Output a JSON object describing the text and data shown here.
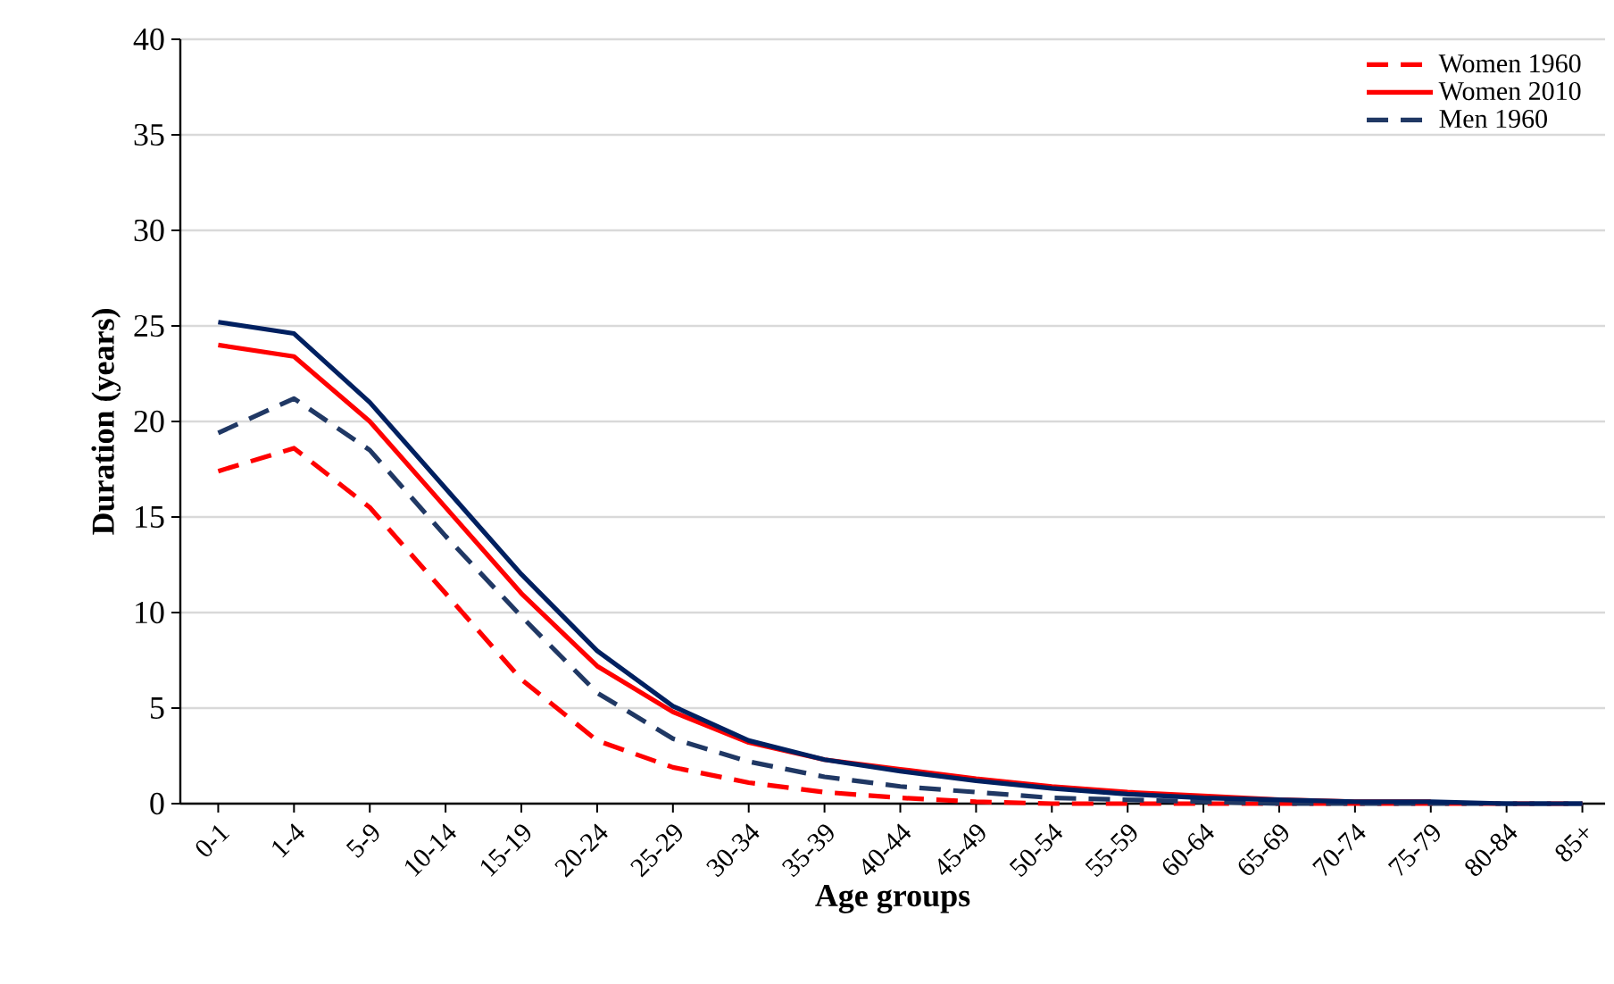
{
  "chart_data": {
    "type": "line",
    "xlabel": "Age groups",
    "ylabel": "Duration (years)",
    "categories": [
      "0-1",
      "1-4",
      "5-9",
      "10-14",
      "15-19",
      "20-24",
      "25-29",
      "30-34",
      "35-39",
      "40-44",
      "45-49",
      "50-54",
      "55-59",
      "60-64",
      "65-69",
      "70-74",
      "75-79",
      "80-84",
      "85+"
    ],
    "ylim": [
      0,
      40
    ],
    "yticks": [
      0,
      5,
      10,
      15,
      20,
      25,
      30,
      35,
      40
    ],
    "grid": "y",
    "legend": "top right",
    "series": [
      {
        "name": "Women 1960",
        "color": "#ff0000",
        "line_style": "dashed",
        "values": [
          17.4,
          18.6,
          15.5,
          11,
          6.5,
          3.3,
          1.9,
          1.1,
          0.6,
          0.3,
          0.1,
          0,
          0,
          0,
          0,
          0,
          0,
          0,
          0
        ]
      },
      {
        "name": "Women 2010",
        "color": "#ff0000",
        "line_style": "solid",
        "values": [
          24,
          23.4,
          20,
          15.5,
          11,
          7.2,
          4.8,
          3.2,
          2.3,
          1.8,
          1.3,
          0.9,
          0.6,
          0.4,
          0.2,
          0.1,
          0.1,
          null,
          null
        ]
      },
      {
        "name": "Men 1960",
        "color": "#203864",
        "line_style": "dashed",
        "values": [
          19.4,
          21.2,
          18.5,
          14,
          9.8,
          5.8,
          3.4,
          2.2,
          1.4,
          0.9,
          0.6,
          0.3,
          0.2,
          0.1,
          0,
          0,
          0,
          0,
          0
        ]
      },
      {
        "color": "#002060",
        "line_style": "solid",
        "values": [
          25.2,
          24.6,
          21,
          16.5,
          12,
          8,
          5.1,
          3.3,
          2.3,
          1.7,
          1.2,
          0.8,
          0.5,
          0.3,
          0.2,
          0.1,
          0.1,
          0,
          0
        ]
      }
    ]
  }
}
